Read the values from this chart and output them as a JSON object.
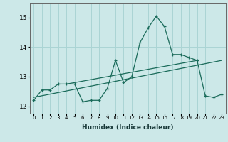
{
  "xlabel": "Humidex (Indice chaleur)",
  "ylabel": "",
  "background_color": "#cce8e8",
  "line_color": "#1a6b5a",
  "xlim": [
    -0.5,
    23.5
  ],
  "ylim": [
    11.75,
    15.5
  ],
  "yticks": [
    12,
    13,
    14,
    15
  ],
  "xticks": [
    0,
    1,
    2,
    3,
    4,
    5,
    6,
    7,
    8,
    9,
    10,
    11,
    12,
    13,
    14,
    15,
    16,
    17,
    18,
    19,
    20,
    21,
    22,
    23
  ],
  "series1_x": [
    0,
    1,
    2,
    3,
    4,
    5,
    6,
    7,
    8,
    9,
    10,
    11,
    12,
    13,
    14,
    15,
    16,
    17,
    18,
    19,
    20,
    21,
    22,
    23
  ],
  "series1_y": [
    12.2,
    12.55,
    12.55,
    12.75,
    12.75,
    12.75,
    12.15,
    12.2,
    12.2,
    12.6,
    13.55,
    12.8,
    13.0,
    14.15,
    14.65,
    15.05,
    14.7,
    13.75,
    13.75,
    13.65,
    13.55,
    12.35,
    12.3,
    12.4
  ],
  "series2_x": [
    0,
    23
  ],
  "series2_y": [
    12.3,
    13.55
  ],
  "series3_x": [
    4,
    20
  ],
  "series3_y": [
    12.75,
    13.55
  ],
  "grid_color": "#aad4d4",
  "marker": "+"
}
